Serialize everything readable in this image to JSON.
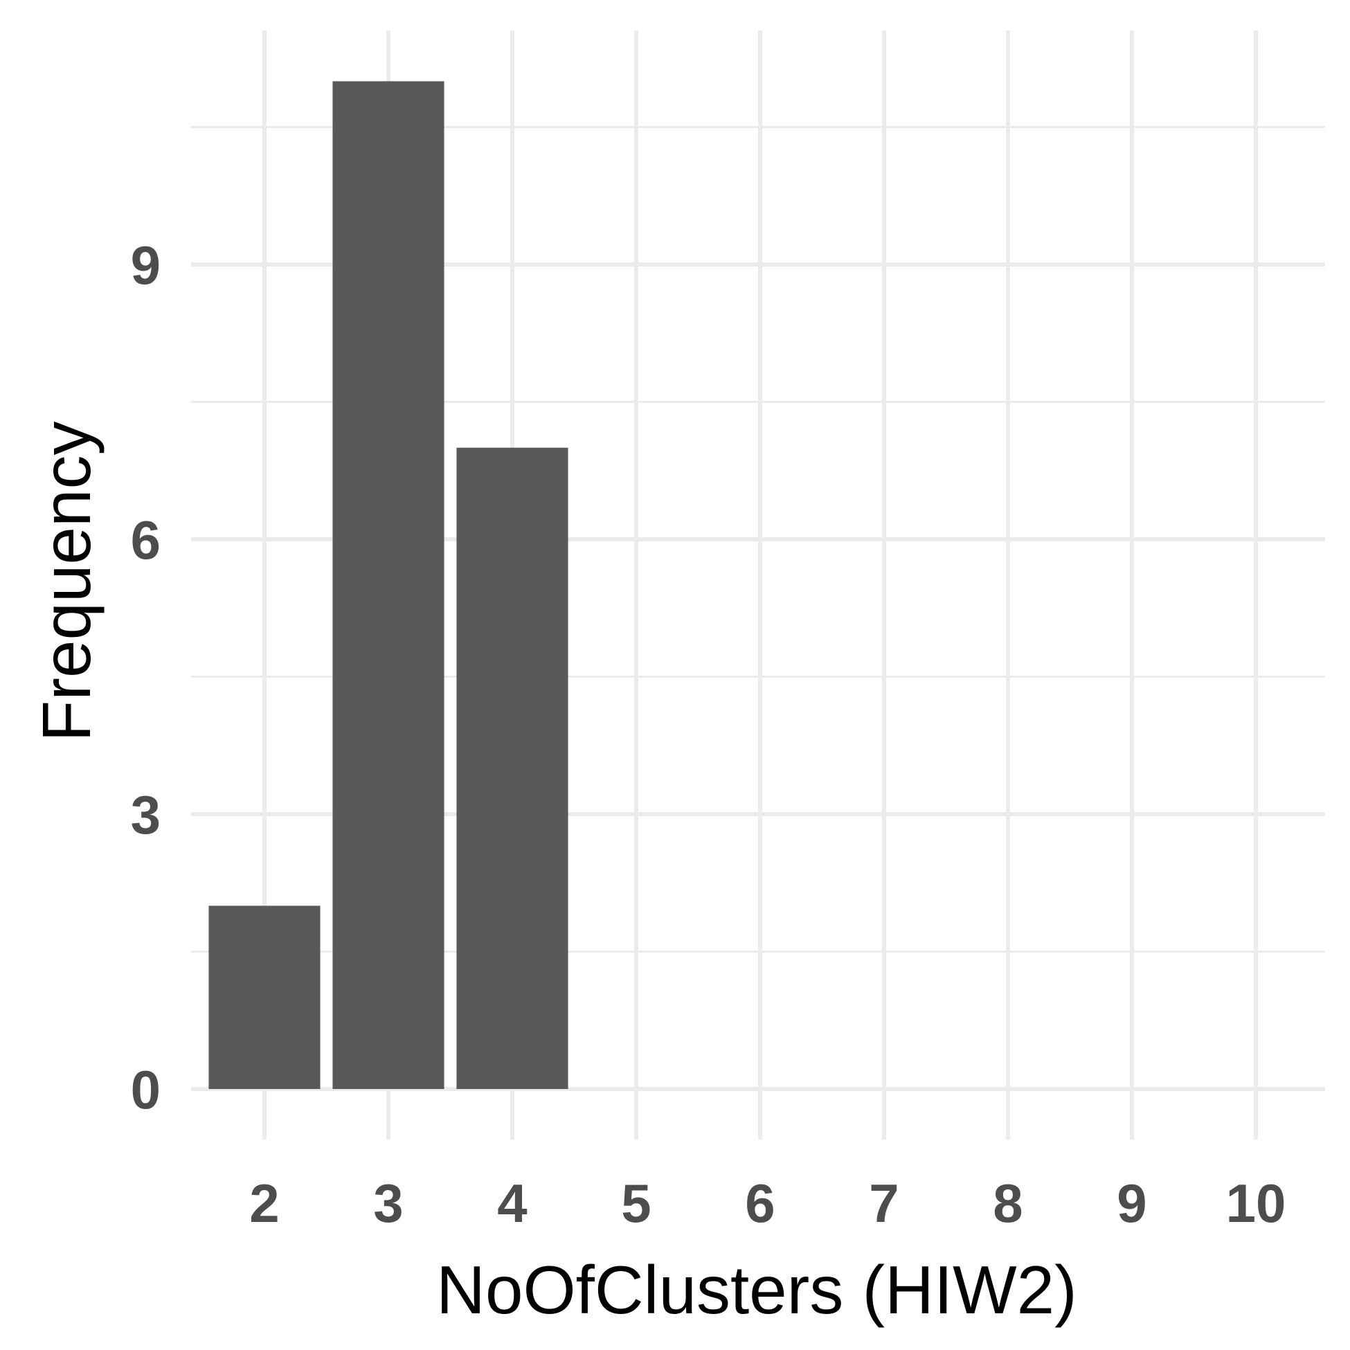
{
  "chart_data": {
    "type": "bar",
    "xlabel": "NoOfClusters (HIW2)",
    "ylabel": "Frequency",
    "categories": [
      2,
      3,
      4
    ],
    "values": [
      2,
      11,
      7
    ],
    "x_ticks": [
      "2",
      "3",
      "4",
      "5",
      "6",
      "7",
      "8",
      "9",
      "10"
    ],
    "y_ticks": [
      "0",
      "3",
      "6",
      "9"
    ],
    "xlim": [
      1.6,
      10.6
    ],
    "ylim": [
      -0.1,
      11.6
    ],
    "grid": true,
    "colors": {
      "bar": "#595959",
      "grid": "#ebebeb",
      "tick_text": "#4d4d4d",
      "axis_title": "#000000",
      "background": "#ffffff"
    }
  }
}
